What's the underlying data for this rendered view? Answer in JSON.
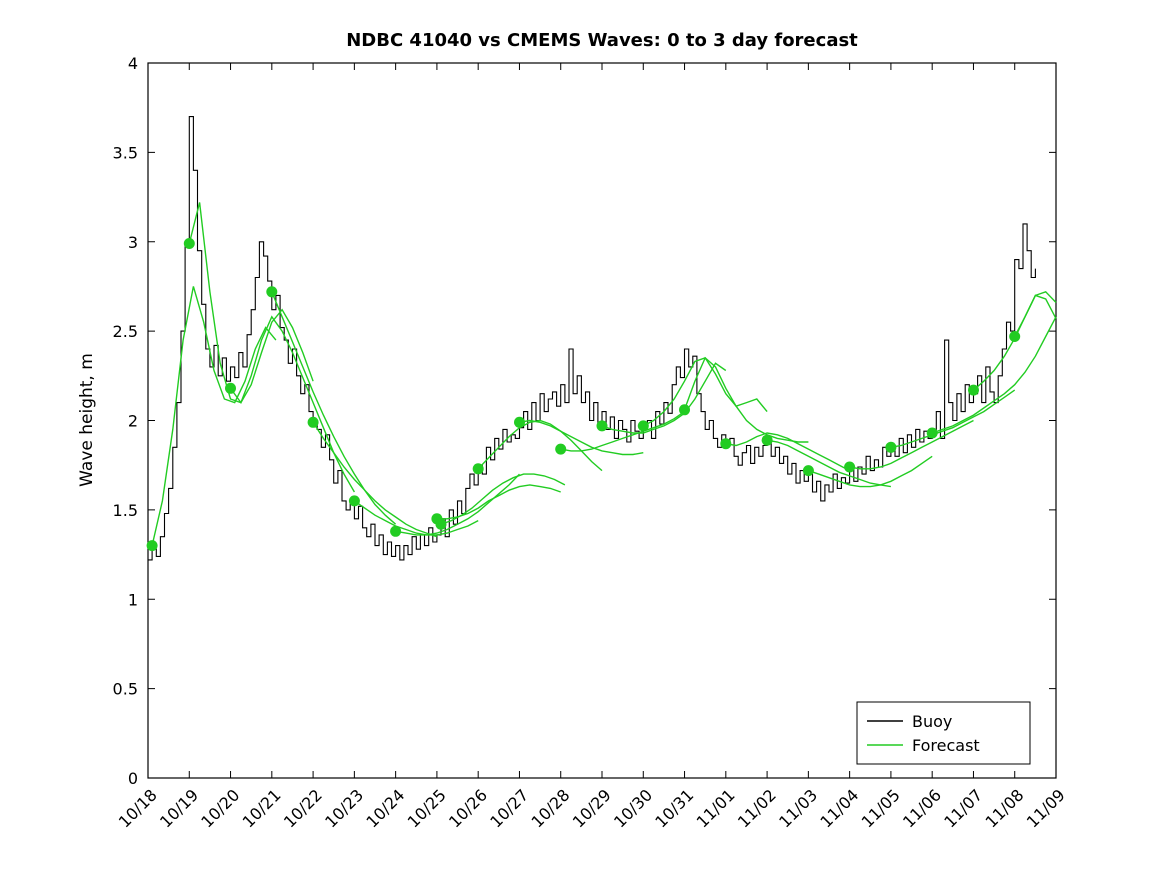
{
  "title": "NDBC 41040 vs CMEMS Waves: 0 to 3 day forecast",
  "colors": {
    "buoy": "#000000",
    "forecast": "#22cc22",
    "axis": "#000000",
    "background": "#ffffff"
  },
  "legend": {
    "entries": [
      {
        "label": "Buoy",
        "color": "#000000"
      },
      {
        "label": "Forecast",
        "color": "#22cc22"
      }
    ],
    "position": "lower-right"
  },
  "chart_data": {
    "type": "line",
    "title": "NDBC 41040 vs CMEMS Waves: 0 to 3 day forecast",
    "xlabel": "",
    "ylabel": "Wave height, m",
    "ylim": [
      0,
      4
    ],
    "xlim_days": [
      0,
      22
    ],
    "y_ticks": [
      0,
      0.5,
      1,
      1.5,
      2,
      2.5,
      3,
      3.5,
      4
    ],
    "y_tick_labels": [
      "0",
      "0.5",
      "1",
      "1.5",
      "2",
      "2.5",
      "3",
      "3.5",
      "4"
    ],
    "x_tick_labels": [
      "10/18",
      "10/19",
      "10/20",
      "10/21",
      "10/22",
      "10/23",
      "10/24",
      "10/25",
      "10/26",
      "10/27",
      "10/28",
      "10/29",
      "10/30",
      "10/31",
      "11/01",
      "11/02",
      "11/03",
      "11/04",
      "11/05",
      "11/06",
      "11/07",
      "11/08",
      "11/09"
    ],
    "grid": false,
    "legend_position": "lower-right",
    "buoy": {
      "name": "Buoy",
      "x0": 0.0,
      "dt": 0.1,
      "values": [
        1.22,
        1.28,
        1.24,
        1.35,
        1.48,
        1.62,
        1.85,
        2.1,
        2.5,
        3.0,
        3.7,
        3.4,
        2.95,
        2.65,
        2.4,
        2.3,
        2.42,
        2.25,
        2.35,
        2.22,
        2.3,
        2.24,
        2.38,
        2.3,
        2.48,
        2.62,
        2.8,
        3.0,
        2.92,
        2.78,
        2.62,
        2.7,
        2.52,
        2.45,
        2.32,
        2.4,
        2.25,
        2.15,
        2.2,
        2.05,
        2.0,
        1.95,
        1.85,
        1.92,
        1.78,
        1.65,
        1.72,
        1.55,
        1.5,
        1.56,
        1.45,
        1.52,
        1.4,
        1.35,
        1.42,
        1.3,
        1.36,
        1.25,
        1.32,
        1.24,
        1.3,
        1.22,
        1.3,
        1.25,
        1.35,
        1.28,
        1.36,
        1.3,
        1.4,
        1.32,
        1.36,
        1.45,
        1.35,
        1.5,
        1.42,
        1.55,
        1.48,
        1.62,
        1.7,
        1.64,
        1.75,
        1.7,
        1.85,
        1.78,
        1.9,
        1.84,
        1.95,
        1.88,
        1.92,
        1.9,
        1.96,
        2.05,
        1.95,
        2.1,
        2.0,
        2.15,
        2.05,
        2.12,
        2.16,
        2.08,
        2.2,
        2.1,
        2.4,
        2.15,
        2.25,
        2.1,
        2.16,
        2.0,
        2.1,
        1.96,
        2.05,
        1.95,
        2.02,
        1.9,
        2.0,
        1.95,
        1.88,
        2.0,
        1.94,
        1.9,
        1.95,
        2.0,
        1.9,
        2.05,
        1.98,
        2.1,
        2.04,
        2.2,
        2.3,
        2.24,
        2.4,
        2.3,
        2.36,
        2.15,
        2.05,
        1.95,
        2.0,
        1.9,
        1.85,
        1.92,
        1.86,
        1.9,
        1.8,
        1.75,
        1.82,
        1.86,
        1.76,
        1.85,
        1.8,
        1.86,
        1.9,
        1.8,
        1.85,
        1.76,
        1.8,
        1.7,
        1.76,
        1.65,
        1.72,
        1.66,
        1.7,
        1.6,
        1.66,
        1.55,
        1.64,
        1.6,
        1.7,
        1.62,
        1.68,
        1.65,
        1.75,
        1.66,
        1.74,
        1.7,
        1.8,
        1.72,
        1.78,
        1.74,
        1.85,
        1.8,
        1.85,
        1.8,
        1.9,
        1.82,
        1.92,
        1.85,
        1.95,
        1.88,
        1.94,
        1.9,
        1.95,
        2.05,
        1.9,
        2.45,
        2.1,
        2.0,
        2.15,
        2.05,
        2.2,
        2.1,
        2.15,
        2.25,
        2.1,
        2.3,
        2.16,
        2.1,
        2.25,
        2.4,
        2.55,
        2.5,
        2.9,
        2.85,
        3.1,
        2.95,
        2.8,
        2.85
      ]
    },
    "forecast_runs": [
      {
        "start": 0.1,
        "dt": 0.25,
        "values": [
          1.3,
          1.55,
          1.95,
          2.45,
          2.75,
          2.55,
          2.28,
          2.12,
          2.1,
          2.22,
          2.4,
          2.52,
          2.45
        ]
      },
      {
        "start": 1.0,
        "dt": 0.25,
        "values": [
          2.99,
          3.22,
          2.72,
          2.32,
          2.12,
          2.1,
          2.2,
          2.38,
          2.55,
          2.62,
          2.52,
          2.38,
          2.22
        ]
      },
      {
        "start": 2.0,
        "dt": 0.25,
        "values": [
          2.18,
          2.1,
          2.25,
          2.45,
          2.58,
          2.5,
          2.38,
          2.24,
          2.1,
          1.96,
          1.82,
          1.7,
          1.6
        ]
      },
      {
        "start": 3.0,
        "dt": 0.25,
        "values": [
          2.72,
          2.58,
          2.44,
          2.3,
          2.16,
          2.03,
          1.91,
          1.8,
          1.7,
          1.61,
          1.53,
          1.47,
          1.42
        ]
      },
      {
        "start": 4.0,
        "dt": 0.25,
        "values": [
          1.99,
          1.9,
          1.82,
          1.74,
          1.67,
          1.61,
          1.55,
          1.5,
          1.46,
          1.42,
          1.39,
          1.37,
          1.35
        ]
      },
      {
        "start": 5.0,
        "dt": 0.25,
        "values": [
          1.55,
          1.51,
          1.47,
          1.44,
          1.41,
          1.39,
          1.37,
          1.36,
          1.36,
          1.37,
          1.39,
          1.41,
          1.44
        ]
      },
      {
        "start": 6.0,
        "dt": 0.25,
        "values": [
          1.38,
          1.37,
          1.36,
          1.36,
          1.37,
          1.39,
          1.42,
          1.45,
          1.49,
          1.54,
          1.59,
          1.64,
          1.7
        ]
      },
      {
        "start": 7.0,
        "dt": 0.25,
        "values": [
          1.45,
          1.45,
          1.46,
          1.48,
          1.51,
          1.55,
          1.58,
          1.61,
          1.63,
          1.64,
          1.63,
          1.62,
          1.6
        ]
      },
      {
        "start": 7.1,
        "dt": 0.25,
        "values": [
          1.42,
          1.44,
          1.47,
          1.51,
          1.56,
          1.61,
          1.65,
          1.68,
          1.7,
          1.7,
          1.69,
          1.67,
          1.64
        ]
      },
      {
        "start": 8.0,
        "dt": 0.25,
        "values": [
          1.73,
          1.79,
          1.85,
          1.91,
          1.96,
          1.99,
          2.0,
          1.98,
          1.94,
          1.89,
          1.83,
          1.77,
          1.72
        ]
      },
      {
        "start": 9.0,
        "dt": 0.25,
        "values": [
          1.99,
          2.0,
          1.99,
          1.97,
          1.94,
          1.91,
          1.88,
          1.85,
          1.83,
          1.82,
          1.81,
          1.81,
          1.82
        ]
      },
      {
        "start": 10.0,
        "dt": 0.25,
        "values": [
          1.84,
          1.83,
          1.83,
          1.84,
          1.86,
          1.88,
          1.9,
          1.92,
          1.94,
          1.96,
          1.98,
          2.01,
          2.05
        ]
      },
      {
        "start": 11.0,
        "dt": 0.25,
        "values": [
          1.97,
          1.95,
          1.94,
          1.93,
          1.93,
          1.95,
          1.97,
          2.0,
          2.04,
          2.12,
          2.22,
          2.32,
          2.28
        ]
      },
      {
        "start": 12.0,
        "dt": 0.25,
        "values": [
          1.97,
          2.0,
          2.05,
          2.12,
          2.22,
          2.33,
          2.35,
          2.26,
          2.15,
          2.08,
          2.1,
          2.12,
          2.05
        ]
      },
      {
        "start": 13.0,
        "dt": 0.25,
        "values": [
          2.06,
          2.22,
          2.35,
          2.3,
          2.18,
          2.08,
          2.0,
          1.95,
          1.92,
          1.9,
          1.89,
          1.88,
          1.88
        ]
      },
      {
        "start": 14.0,
        "dt": 0.25,
        "values": [
          1.87,
          1.86,
          1.88,
          1.91,
          1.93,
          1.92,
          1.9,
          1.87,
          1.84,
          1.81,
          1.78,
          1.75,
          1.72
        ]
      },
      {
        "start": 15.0,
        "dt": 0.25,
        "values": [
          1.89,
          1.88,
          1.86,
          1.83,
          1.8,
          1.77,
          1.74,
          1.71,
          1.69,
          1.67,
          1.65,
          1.64,
          1.63
        ]
      },
      {
        "start": 16.0,
        "dt": 0.25,
        "values": [
          1.72,
          1.7,
          1.68,
          1.66,
          1.64,
          1.63,
          1.63,
          1.64,
          1.66,
          1.69,
          1.72,
          1.76,
          1.8
        ]
      },
      {
        "start": 17.0,
        "dt": 0.25,
        "values": [
          1.74,
          1.73,
          1.73,
          1.74,
          1.76,
          1.79,
          1.82,
          1.85,
          1.88,
          1.91,
          1.94,
          1.97,
          2.0
        ]
      },
      {
        "start": 18.0,
        "dt": 0.25,
        "values": [
          1.85,
          1.86,
          1.88,
          1.9,
          1.92,
          1.94,
          1.96,
          1.99,
          2.02,
          2.05,
          2.09,
          2.13,
          2.17
        ]
      },
      {
        "start": 19.0,
        "dt": 0.25,
        "values": [
          1.93,
          1.95,
          1.97,
          2.0,
          2.03,
          2.07,
          2.11,
          2.15,
          2.2,
          2.27,
          2.36,
          2.47,
          2.58
        ]
      },
      {
        "start": 20.0,
        "dt": 0.25,
        "values": [
          2.17,
          2.22,
          2.28,
          2.36,
          2.46,
          2.58,
          2.7,
          2.72,
          2.66,
          2.58,
          2.52,
          2.48,
          2.45
        ]
      },
      {
        "start": 21.0,
        "dt": 0.25,
        "values": [
          2.47,
          2.58,
          2.7,
          2.68,
          2.57,
          2.5,
          2.45,
          2.42,
          2.4,
          2.38,
          2.37,
          2.36,
          2.35
        ]
      }
    ],
    "forecast_markers": [
      [
        0.1,
        1.3
      ],
      [
        1,
        2.99
      ],
      [
        2,
        2.18
      ],
      [
        3,
        2.72
      ],
      [
        4,
        1.99
      ],
      [
        5,
        1.55
      ],
      [
        6,
        1.38
      ],
      [
        7,
        1.45
      ],
      [
        7.1,
        1.42
      ],
      [
        8,
        1.73
      ],
      [
        9,
        1.99
      ],
      [
        10,
        1.84
      ],
      [
        11,
        1.97
      ],
      [
        12,
        1.97
      ],
      [
        13,
        2.06
      ],
      [
        14,
        1.87
      ],
      [
        15,
        1.89
      ],
      [
        16,
        1.72
      ],
      [
        17,
        1.74
      ],
      [
        18,
        1.85
      ],
      [
        19,
        1.93
      ],
      [
        20,
        2.17
      ],
      [
        21,
        2.47
      ]
    ]
  }
}
